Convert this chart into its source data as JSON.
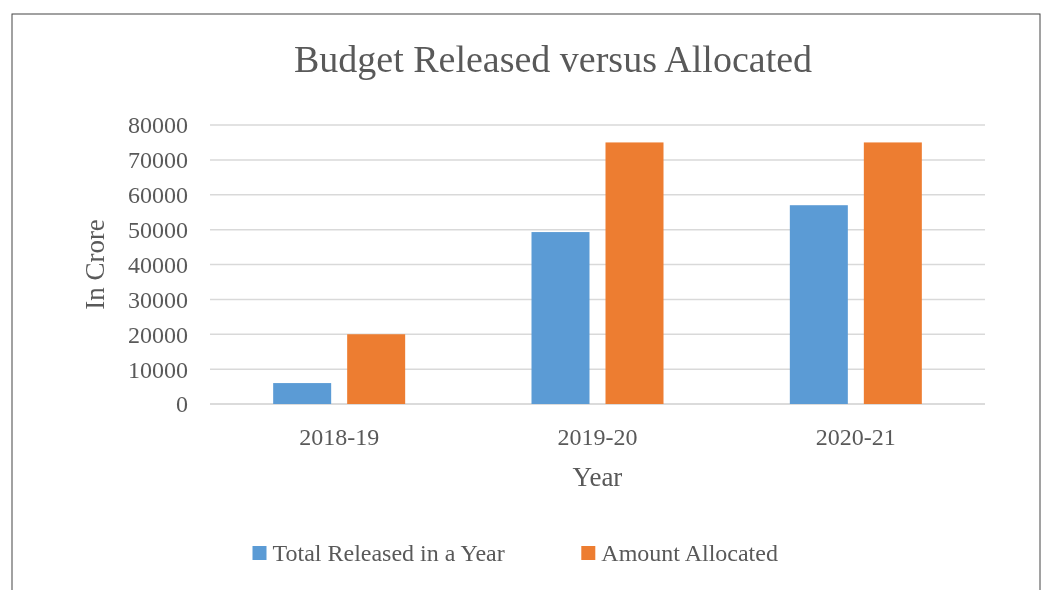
{
  "chart_data": {
    "type": "bar",
    "title": "Budget Released versus Allocated",
    "xlabel": "Year",
    "ylabel": "In Crore",
    "categories": [
      "2018-19",
      "2019-20",
      "2020-21"
    ],
    "series": [
      {
        "name": "Total Released in a Year",
        "color": "#5b9bd5",
        "values": [
          6000,
          49300,
          57000
        ]
      },
      {
        "name": "Amount Allocated",
        "color": "#ed7d31",
        "values": [
          20000,
          75000,
          75000
        ]
      }
    ],
    "ylim": [
      0,
      80000
    ],
    "yticks": [
      0,
      10000,
      20000,
      30000,
      40000,
      50000,
      60000,
      70000,
      80000
    ],
    "grid": "y",
    "legend": "bottom"
  }
}
